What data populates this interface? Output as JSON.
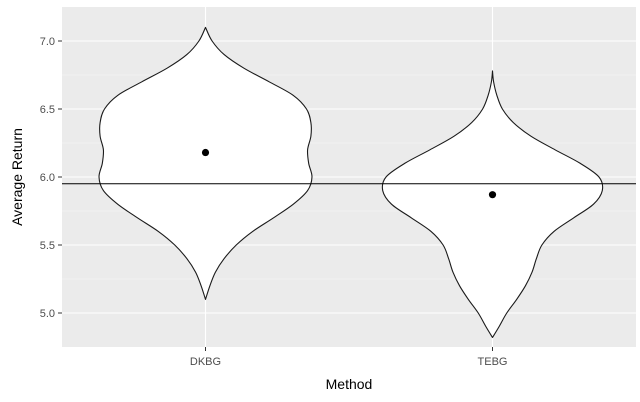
{
  "chart_data": {
    "type": "violin",
    "title": "",
    "xlabel": "Method",
    "ylabel": "Average Return",
    "categories": [
      "DKBG",
      "TEBG"
    ],
    "ylim": [
      4.75,
      7.25
    ],
    "yticks": [
      5.0,
      5.5,
      6.0,
      6.5,
      7.0
    ],
    "ytick_labels": [
      "5.0",
      "5.5",
      "6.0",
      "6.5",
      "7.0"
    ],
    "grid": true,
    "legend": "none",
    "reference_line": 5.95,
    "means": [
      6.18,
      5.87
    ],
    "violins": [
      {
        "category": "DKBG",
        "profile": [
          [
            5.1,
            0.0
          ],
          [
            5.2,
            0.04
          ],
          [
            5.3,
            0.09
          ],
          [
            5.4,
            0.17
          ],
          [
            5.5,
            0.28
          ],
          [
            5.6,
            0.43
          ],
          [
            5.7,
            0.62
          ],
          [
            5.8,
            0.8
          ],
          [
            5.9,
            0.93
          ],
          [
            6.0,
            0.97
          ],
          [
            6.1,
            0.94
          ],
          [
            6.2,
            0.93
          ],
          [
            6.3,
            0.96
          ],
          [
            6.4,
            0.96
          ],
          [
            6.5,
            0.92
          ],
          [
            6.6,
            0.8
          ],
          [
            6.7,
            0.58
          ],
          [
            6.8,
            0.35
          ],
          [
            6.9,
            0.17
          ],
          [
            7.0,
            0.06
          ],
          [
            7.1,
            0.0
          ]
        ]
      },
      {
        "category": "TEBG",
        "profile": [
          [
            4.82,
            0.0
          ],
          [
            4.9,
            0.06
          ],
          [
            5.0,
            0.13
          ],
          [
            5.1,
            0.22
          ],
          [
            5.2,
            0.3
          ],
          [
            5.3,
            0.36
          ],
          [
            5.4,
            0.4
          ],
          [
            5.5,
            0.45
          ],
          [
            5.6,
            0.56
          ],
          [
            5.7,
            0.74
          ],
          [
            5.8,
            0.92
          ],
          [
            5.9,
            1.0
          ],
          [
            6.0,
            0.97
          ],
          [
            6.1,
            0.8
          ],
          [
            6.2,
            0.57
          ],
          [
            6.3,
            0.35
          ],
          [
            6.4,
            0.19
          ],
          [
            6.5,
            0.09
          ],
          [
            6.6,
            0.04
          ],
          [
            6.7,
            0.01
          ],
          [
            6.78,
            0.0
          ]
        ]
      }
    ],
    "colors": {
      "panel": "#ebebeb",
      "grid_major": "#ffffff",
      "violin_fill": "#ffffff",
      "violin_stroke": "#1a1a1a",
      "mean_point": "#000000",
      "reference_line": "#000000"
    }
  }
}
